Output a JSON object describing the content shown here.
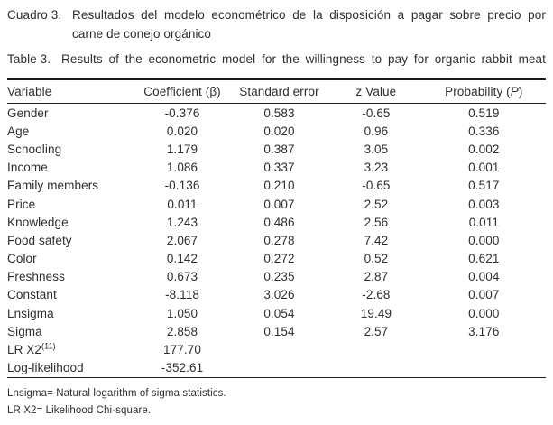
{
  "titles": {
    "spanish": {
      "label": "Cuadro 3.",
      "line1": "Resultados del modelo econométrico de la disposición a pagar sobre precio por",
      "line2": "carne de conejo orgánico"
    },
    "english": {
      "label": "Table 3.",
      "text": "Results of the econometric model for the willingness to pay for organic rabbit meat"
    }
  },
  "table": {
    "headers": {
      "variable": "Variable",
      "coefficient": "Coefficient (β)",
      "standard_error": "Standard error",
      "z_value": "z Value",
      "probability_prefix": "Probability (",
      "probability_letter": "P",
      "probability_suffix": ")"
    },
    "rows": [
      {
        "variable": "Gender",
        "coefficient": "-0.376",
        "standard_error": "0.583",
        "z_value": "-0.65",
        "probability": "0.519"
      },
      {
        "variable": "Age",
        "coefficient": "0.020",
        "standard_error": "0.020",
        "z_value": "0.96",
        "probability": "0.336"
      },
      {
        "variable": "Schooling",
        "coefficient": "1.179",
        "standard_error": "0.387",
        "z_value": "3.05",
        "probability": "0.002"
      },
      {
        "variable": "Income",
        "coefficient": "1.086",
        "standard_error": "0.337",
        "z_value": "3.23",
        "probability": "0.001"
      },
      {
        "variable": "Family members",
        "coefficient": "-0.136",
        "standard_error": "0.210",
        "z_value": "-0.65",
        "probability": "0.517"
      },
      {
        "variable": "Price",
        "coefficient": "0.011",
        "standard_error": "0.007",
        "z_value": "2.52",
        "probability": "0.003"
      },
      {
        "variable": "Knowledge",
        "coefficient": "1.243",
        "standard_error": "0.486",
        "z_value": "2.56",
        "probability": "0.011"
      },
      {
        "variable": "Food safety",
        "coefficient": "2.067",
        "standard_error": "0.278",
        "z_value": "7.42",
        "probability": "0.000"
      },
      {
        "variable": "Color",
        "coefficient": "0.142",
        "standard_error": "0.272",
        "z_value": "0.52",
        "probability": "0.621"
      },
      {
        "variable": "Freshness",
        "coefficient": "0.673",
        "standard_error": "0.235",
        "z_value": "2.87",
        "probability": "0.004"
      },
      {
        "variable": "Constant",
        "coefficient": "-8.118",
        "standard_error": "3.026",
        "z_value": "-2.68",
        "probability": "0.007"
      },
      {
        "variable": "Lnsigma",
        "coefficient": "1.050",
        "standard_error": "0.054",
        "z_value": "19.49",
        "probability": "0.000"
      },
      {
        "variable": "Sigma",
        "coefficient": "2.858",
        "standard_error": "0.154",
        "z_value": "2.57",
        "probability": "3.176"
      },
      {
        "variable": "LR X2",
        "variable_sup": "(11)",
        "coefficient": "177.70",
        "standard_error": "",
        "z_value": "",
        "probability": ""
      },
      {
        "variable": "Log-likelihood",
        "coefficient": "-352.61",
        "standard_error": "",
        "z_value": "",
        "probability": ""
      }
    ]
  },
  "footnotes": [
    "Lnsigma= Natural logarithm of sigma statistics.",
    "LR X2= Likelihood Chi-square."
  ]
}
